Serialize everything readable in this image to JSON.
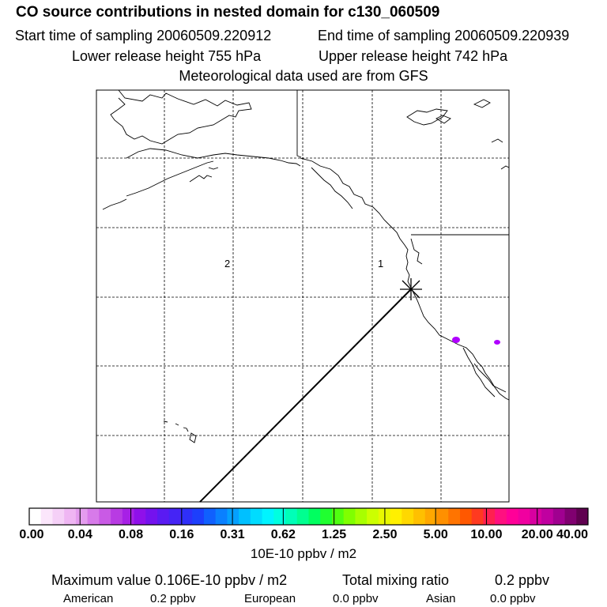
{
  "header": {
    "title": "CO  source contributions in nested domain for c130_060509",
    "start_time": "Start time of sampling 20060509.220912",
    "end_time": "End time of sampling 20060509.220939",
    "lower_release": "Lower release height  755 hPa",
    "upper_release": "Upper release height  742 hPa",
    "met_data": "Meteorological data used are from GFS"
  },
  "map": {
    "region_labels": [
      "2",
      "1"
    ],
    "plume_color": "#b000ff"
  },
  "colorbar": {
    "tick_labels": [
      "0.00",
      "0.04",
      "0.08",
      "0.16",
      "0.31",
      "0.62",
      "1.25",
      "2.50",
      "5.00",
      "10.00",
      "20.00",
      "40.00"
    ],
    "unit": "10E-10 ppbv / m2",
    "colors": [
      "#ffffff",
      "#fbe6fb",
      "#f5d0f7",
      "#efb6f3",
      "#e49cee",
      "#d77ae9",
      "#c95ae5",
      "#b83be3",
      "#a720e6",
      "#8f10ea",
      "#7412ee",
      "#5a1bf2",
      "#4524f5",
      "#2f2ff9",
      "#1d3ffc",
      "#1060fe",
      "#0a80ff",
      "#05a0ff",
      "#00c0ff",
      "#00dcff",
      "#00f4ff",
      "#00ffe0",
      "#00ffb8",
      "#00ff90",
      "#00ff60",
      "#20ff30",
      "#50ff10",
      "#80ff00",
      "#a8ff00",
      "#ccff00",
      "#e8f800",
      "#fff000",
      "#ffd800",
      "#ffc000",
      "#ffa800",
      "#ff9000",
      "#ff7400",
      "#ff5800",
      "#ff3a20",
      "#ff2050",
      "#ff1080",
      "#ff0098",
      "#f000a0",
      "#d800a0",
      "#c000a0",
      "#a00090",
      "#800070",
      "#600050"
    ]
  },
  "stats": {
    "max_value": "Maximum value  0.106E-10 ppbv / m2",
    "total_label": "Total mixing ratio",
    "total_value": "0.2 ppbv",
    "american_label": "American",
    "american_value": "0.2 ppbv",
    "european_label": "European",
    "european_value": "0.0 ppbv",
    "asian_label": "Asian",
    "asian_value": "0.0 ppbv"
  }
}
